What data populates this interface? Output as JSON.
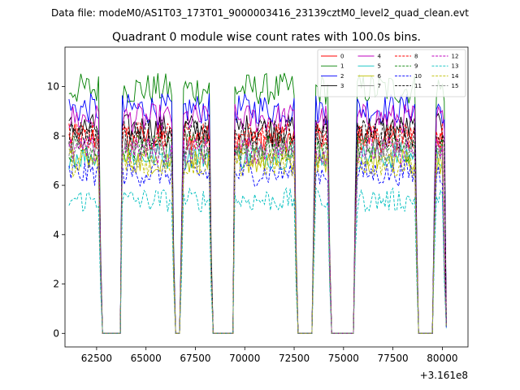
{
  "chart_data": {
    "type": "line",
    "suptitle": "Data file: modeM0/AS1T03_173T01_9000003416_23139cztM0_level2_quad_clean.evt",
    "title": "Quadrant 0 module wise count rates with 100.0s bins.",
    "xlabel": "",
    "ylabel": "",
    "x_offset_label": "+3.161e8",
    "xlim": [
      60900,
      81300
    ],
    "ylim": [
      -0.55,
      11.6
    ],
    "x_ticks": [
      62500,
      65000,
      67500,
      70000,
      72500,
      75000,
      77500,
      80000
    ],
    "y_ticks": [
      0,
      2,
      4,
      6,
      8,
      10
    ],
    "legend_location": "top-right",
    "legend_columns": 4,
    "x_start": 61100,
    "bin_seconds": 100,
    "n_bins": 192,
    "gap_bins": [
      17,
      18,
      19,
      20,
      21,
      22,
      23,
      24,
      25,
      26,
      54,
      55,
      56,
      73,
      74,
      75,
      76,
      77,
      78,
      79,
      80,
      81,
      82,
      83,
      116,
      117,
      118,
      119,
      120,
      121,
      122,
      123,
      133,
      134,
      135,
      136,
      137,
      138,
      139,
      140,
      141,
      142,
      143,
      144,
      177,
      178,
      179,
      180,
      181,
      182,
      183,
      184
    ],
    "dip_bins": {
      "16": 0.35,
      "53": 0.35,
      "57": 0.45,
      "72": 0.35,
      "115": 0.35,
      "124": 0.55,
      "132": 0.35,
      "145": 0.6,
      "176": 0.45,
      "185": 0.6
    },
    "end_values": {
      "190": 3.0,
      "191": 0.28
    },
    "series": [
      {
        "name": "0",
        "level": 7.9,
        "color": "#ff0000",
        "dash": "solid"
      },
      {
        "name": "1",
        "level": 9.9,
        "color": "#008000",
        "dash": "solid"
      },
      {
        "name": "2",
        "level": 9.1,
        "color": "#0000ff",
        "dash": "solid"
      },
      {
        "name": "3",
        "level": 8.3,
        "color": "#000000",
        "dash": "solid"
      },
      {
        "name": "4",
        "level": 8.7,
        "color": "#bf00bf",
        "dash": "solid"
      },
      {
        "name": "5",
        "level": 7.2,
        "color": "#00bfbf",
        "dash": "solid"
      },
      {
        "name": "6",
        "level": 7.0,
        "color": "#bfbf00",
        "dash": "solid"
      },
      {
        "name": "7",
        "level": 7.7,
        "color": "#808080",
        "dash": "solid"
      },
      {
        "name": "8",
        "level": 8.0,
        "color": "#ff0000",
        "dash": "dashed"
      },
      {
        "name": "9",
        "level": 7.5,
        "color": "#008000",
        "dash": "dashed"
      },
      {
        "name": "10",
        "level": 6.5,
        "color": "#0000ff",
        "dash": "dashed"
      },
      {
        "name": "11",
        "level": 8.1,
        "color": "#000000",
        "dash": "dashed"
      },
      {
        "name": "12",
        "level": 7.4,
        "color": "#bf00bf",
        "dash": "dashed"
      },
      {
        "name": "13",
        "level": 5.4,
        "color": "#00bfbf",
        "dash": "dashed"
      },
      {
        "name": "14",
        "level": 6.9,
        "color": "#bfbf00",
        "dash": "dashed"
      },
      {
        "name": "15",
        "level": 7.3,
        "color": "#808080",
        "dash": "dashed"
      }
    ]
  }
}
